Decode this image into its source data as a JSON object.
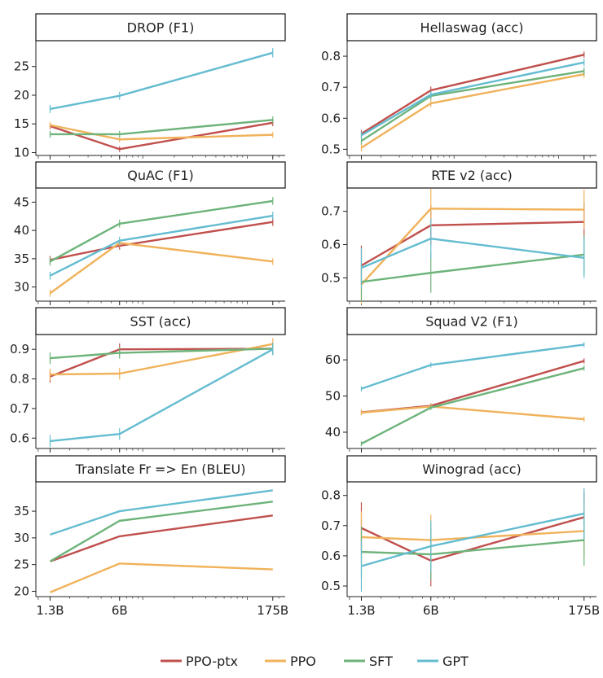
{
  "colors": {
    "PPO-ptx": "#c0504d",
    "PPO": "#f0b25a",
    "SFT": "#6db37a",
    "GPT": "#64bcd0"
  },
  "x_tick_labels": [
    "1.3B",
    "6B",
    "175B"
  ],
  "legend": [
    "PPO-ptx",
    "PPO",
    "SFT",
    "GPT"
  ],
  "chart_data": [
    {
      "type": "line",
      "title": "DROP (F1)",
      "x": [
        "1.3B",
        "6B",
        "175B"
      ],
      "ylim": [
        9.5,
        29.5
      ],
      "yticks": [
        10,
        15,
        20,
        25
      ],
      "series": [
        {
          "name": "PPO-ptx",
          "values": [
            14.6,
            10.6,
            15.2
          ],
          "err": [
            0.5,
            0.5,
            0.6
          ]
        },
        {
          "name": "PPO",
          "values": [
            14.8,
            12.3,
            13.1
          ],
          "err": [
            0.5,
            0.5,
            0.5
          ]
        },
        {
          "name": "SFT",
          "values": [
            13.2,
            13.2,
            15.7
          ],
          "err": [
            0.6,
            0.6,
            0.6
          ]
        },
        {
          "name": "GPT",
          "values": [
            17.6,
            19.9,
            27.4
          ],
          "err": [
            0.7,
            0.7,
            0.8
          ]
        }
      ]
    },
    {
      "type": "line",
      "title": "Hellaswag (acc)",
      "x": [
        "1.3B",
        "6B",
        "175B"
      ],
      "ylim": [
        0.48,
        0.85
      ],
      "yticks": [
        0.5,
        0.6,
        0.7,
        0.8
      ],
      "series": [
        {
          "name": "PPO-ptx",
          "values": [
            0.55,
            0.69,
            0.805
          ],
          "err": [
            0.012,
            0.012,
            0.01
          ]
        },
        {
          "name": "PPO",
          "values": [
            0.505,
            0.648,
            0.742
          ],
          "err": [
            0.012,
            0.012,
            0.012
          ]
        },
        {
          "name": "SFT",
          "values": [
            0.527,
            0.672,
            0.752
          ],
          "err": [
            0.012,
            0.012,
            0.012
          ]
        },
        {
          "name": "GPT",
          "values": [
            0.545,
            0.676,
            0.78
          ],
          "err": [
            0.012,
            0.012,
            0.012
          ]
        }
      ]
    },
    {
      "type": "line",
      "title": "QuAC (F1)",
      "x": [
        "1.3B",
        "6B",
        "175B"
      ],
      "ylim": [
        27.5,
        47.5
      ],
      "yticks": [
        30,
        35,
        40,
        45
      ],
      "series": [
        {
          "name": "PPO-ptx",
          "values": [
            34.8,
            37.3,
            41.5
          ],
          "err": [
            0.7,
            0.7,
            0.7
          ]
        },
        {
          "name": "PPO",
          "values": [
            28.9,
            37.8,
            34.5
          ],
          "err": [
            0.6,
            0.6,
            0.6
          ]
        },
        {
          "name": "SFT",
          "values": [
            34.5,
            41.2,
            45.2
          ],
          "err": [
            0.7,
            0.7,
            0.7
          ]
        },
        {
          "name": "GPT",
          "values": [
            32.0,
            38.2,
            42.6
          ],
          "err": [
            0.7,
            0.7,
            0.7
          ]
        }
      ]
    },
    {
      "type": "line",
      "title": "RTE v2 (acc)",
      "x": [
        "1.3B",
        "6B",
        "175B"
      ],
      "ylim": [
        0.43,
        0.77
      ],
      "yticks": [
        0.5,
        0.6,
        0.7
      ],
      "series": [
        {
          "name": "PPO-ptx",
          "values": [
            0.537,
            0.658,
            0.668
          ],
          "err": [
            0.06,
            0.06,
            0.06
          ]
        },
        {
          "name": "PPO",
          "values": [
            0.48,
            0.708,
            0.705
          ],
          "err": [
            0.06,
            0.06,
            0.06
          ]
        },
        {
          "name": "SFT",
          "values": [
            0.488,
            0.515,
            0.57
          ],
          "err": [
            0.06,
            0.06,
            0.06
          ]
        },
        {
          "name": "GPT",
          "values": [
            0.53,
            0.618,
            0.56
          ],
          "err": [
            0.06,
            0.06,
            0.06
          ]
        }
      ]
    },
    {
      "type": "line",
      "title": "SST (acc)",
      "x": [
        "1.3B",
        "6B",
        "175B"
      ],
      "ylim": [
        0.565,
        0.95
      ],
      "yticks": [
        0.6,
        0.7,
        0.8,
        0.9
      ],
      "series": [
        {
          "name": "PPO-ptx",
          "values": [
            0.808,
            0.9,
            0.902
          ],
          "err": [
            0.02,
            0.02,
            0.02
          ]
        },
        {
          "name": "PPO",
          "values": [
            0.815,
            0.818,
            0.918
          ],
          "err": [
            0.02,
            0.02,
            0.02
          ]
        },
        {
          "name": "SFT",
          "values": [
            0.87,
            0.888,
            0.902
          ],
          "err": [
            0.02,
            0.02,
            0.02
          ]
        },
        {
          "name": "GPT",
          "values": [
            0.59,
            0.614,
            0.9
          ],
          "err": [
            0.02,
            0.02,
            0.02
          ]
        }
      ]
    },
    {
      "type": "line",
      "title": "Squad V2 (F1)",
      "x": [
        "1.3B",
        "6B",
        "175B"
      ],
      "ylim": [
        35.5,
        67
      ],
      "yticks": [
        40,
        50,
        60
      ],
      "series": [
        {
          "name": "PPO-ptx",
          "values": [
            45.5,
            47.3,
            59.7
          ],
          "err": [
            0.7,
            0.7,
            0.7
          ]
        },
        {
          "name": "PPO",
          "values": [
            45.4,
            47.1,
            43.6
          ],
          "err": [
            0.7,
            0.7,
            0.7
          ]
        },
        {
          "name": "SFT",
          "values": [
            36.8,
            46.8,
            57.7
          ],
          "err": [
            0.7,
            0.7,
            0.7
          ]
        },
        {
          "name": "GPT",
          "values": [
            52.0,
            58.6,
            64.2
          ],
          "err": [
            0.7,
            0.7,
            0.7
          ]
        }
      ]
    },
    {
      "type": "line",
      "title": "Translate Fr => En (BLEU)",
      "x": [
        "1.3B",
        "6B",
        "175B"
      ],
      "ylim": [
        19,
        40.5
      ],
      "yticks": [
        20,
        25,
        30,
        35
      ],
      "series": [
        {
          "name": "PPO-ptx",
          "values": [
            25.6,
            30.3,
            34.2
          ]
        },
        {
          "name": "PPO",
          "values": [
            19.8,
            25.2,
            24.1
          ]
        },
        {
          "name": "SFT",
          "values": [
            25.6,
            33.2,
            36.8
          ]
        },
        {
          "name": "GPT",
          "values": [
            30.6,
            35.0,
            38.9
          ]
        }
      ]
    },
    {
      "type": "line",
      "title": "Winograd (acc)",
      "x": [
        "1.3B",
        "6B",
        "175B"
      ],
      "ylim": [
        0.465,
        0.845
      ],
      "yticks": [
        0.5,
        0.6,
        0.7,
        0.8
      ],
      "series": [
        {
          "name": "PPO-ptx",
          "values": [
            0.692,
            0.584,
            0.728
          ],
          "err": [
            0.085,
            0.085,
            0.085
          ]
        },
        {
          "name": "PPO",
          "values": [
            0.662,
            0.652,
            0.682
          ],
          "err": [
            0.085,
            0.085,
            0.085
          ]
        },
        {
          "name": "SFT",
          "values": [
            0.613,
            0.605,
            0.652
          ],
          "err": [
            0.085,
            0.085,
            0.085
          ]
        },
        {
          "name": "GPT",
          "values": [
            0.566,
            0.632,
            0.74
          ],
          "err": [
            0.085,
            0.085,
            0.085
          ]
        }
      ]
    }
  ]
}
